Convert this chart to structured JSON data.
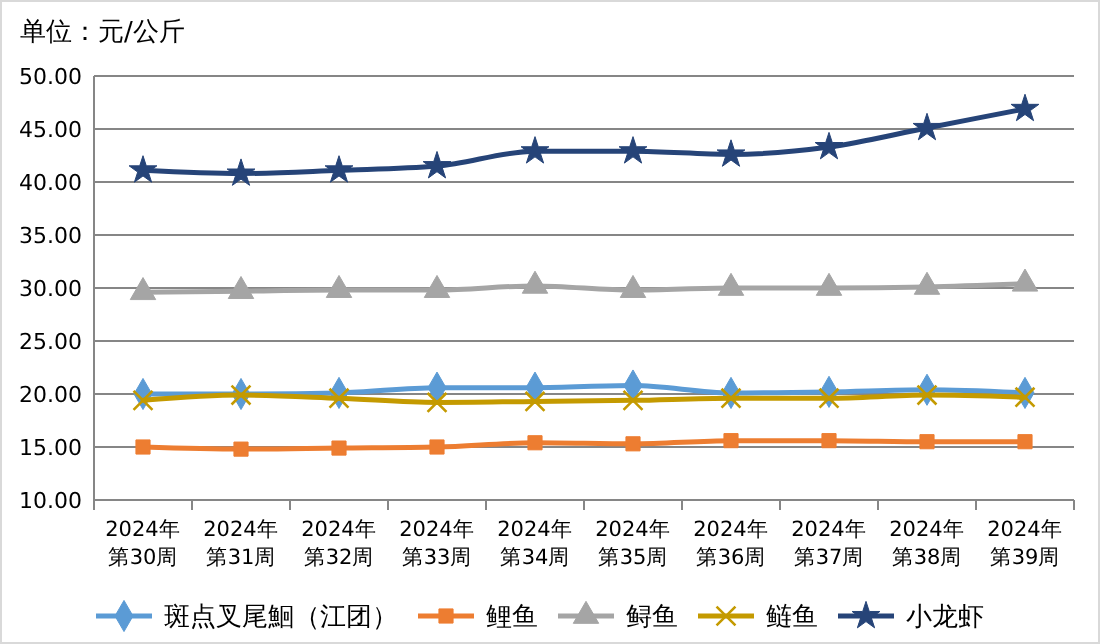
{
  "chart_data": {
    "type": "line",
    "ylabel": "单位：元/公斤",
    "categories": [
      "2024年第30周",
      "2024年第31周",
      "2024年第32周",
      "2024年第33周",
      "2024年第34周",
      "2024年第35周",
      "2024年第36周",
      "2024年第37周",
      "2024年第38周",
      "2024年第39周"
    ],
    "series": [
      {
        "name": "斑点叉尾鮰（江团）",
        "color": "#5b9bd5",
        "marker": "diamond",
        "values": [
          20.0,
          20.0,
          20.1,
          20.6,
          20.6,
          20.8,
          20.1,
          20.2,
          20.4,
          20.1
        ]
      },
      {
        "name": "鲤鱼",
        "color": "#ed7d31",
        "marker": "square",
        "values": [
          15.0,
          14.8,
          14.9,
          15.0,
          15.4,
          15.3,
          15.6,
          15.6,
          15.5,
          15.5
        ]
      },
      {
        "name": "鲟鱼",
        "color": "#a5a5a5",
        "marker": "triangle",
        "values": [
          29.6,
          29.7,
          29.8,
          29.8,
          30.2,
          29.8,
          30.0,
          30.0,
          30.1,
          30.4
        ]
      },
      {
        "name": "鲢鱼",
        "color": "#c49a00",
        "marker": "cross",
        "values": [
          19.4,
          19.9,
          19.6,
          19.2,
          19.3,
          19.4,
          19.6,
          19.6,
          19.9,
          19.7
        ]
      },
      {
        "name": "小龙虾",
        "color": "#264478",
        "marker": "star",
        "values": [
          41.1,
          40.8,
          41.1,
          41.5,
          42.9,
          42.9,
          42.6,
          43.3,
          45.1,
          46.9
        ]
      }
    ],
    "ylim": [
      10,
      50
    ],
    "yticks": [
      {
        "value": 10,
        "label": "10.00"
      },
      {
        "value": 15,
        "label": "15.00"
      },
      {
        "value": 20,
        "label": "20.00"
      },
      {
        "value": 25,
        "label": "25.00"
      },
      {
        "value": 30,
        "label": "30.00"
      },
      {
        "value": 35,
        "label": "35.00"
      },
      {
        "value": 40,
        "label": "40.00"
      },
      {
        "value": 45,
        "label": "45.00"
      },
      {
        "value": 50,
        "label": "50.00"
      }
    ],
    "grid": "y",
    "legend": "bottom",
    "line_style": "solid"
  }
}
